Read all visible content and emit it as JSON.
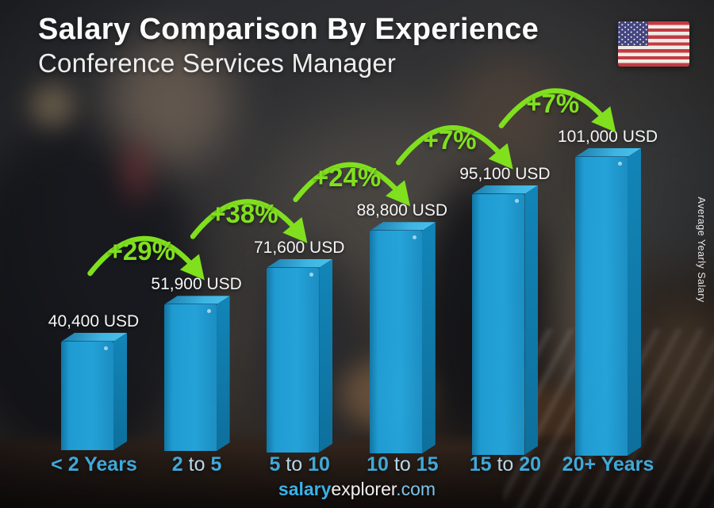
{
  "header": {
    "title": "Salary Comparison By Experience",
    "subtitle": "Conference Services Manager"
  },
  "flag": {
    "country": "United States"
  },
  "y_axis_label": "Average Yearly Salary",
  "footer": {
    "brand_bold": "salary",
    "brand_regular": "explorer",
    "brand_suffix": ".com"
  },
  "chart_data": {
    "type": "bar",
    "title": "Salary Comparison By Experience",
    "subtitle": "Conference Services Manager",
    "currency": "USD",
    "categories": [
      "< 2 Years",
      "2 to 5",
      "5 to 10",
      "10 to 15",
      "15 to 20",
      "20+ Years"
    ],
    "category_segments": [
      [
        "< 2 Years"
      ],
      [
        "2",
        "to",
        "5"
      ],
      [
        "5",
        "to",
        "10"
      ],
      [
        "10",
        "to",
        "15"
      ],
      [
        "15",
        "to",
        "20"
      ],
      [
        "20+ Years"
      ]
    ],
    "values": [
      40400,
      51900,
      71600,
      88800,
      95100,
      101000
    ],
    "value_labels": [
      "40,400 USD",
      "51,900 USD",
      "71,600 USD",
      "88,800 USD",
      "95,100 USD",
      "101,000 USD"
    ],
    "percent_increases": [
      "+29%",
      "+38%",
      "+24%",
      "+7%",
      "+7%"
    ],
    "ylim": [
      0,
      101000
    ],
    "legend": "none",
    "grid": false,
    "colors": {
      "bar_front": "#1fa0d9",
      "bar_front_dark": "#1179a9",
      "bar_top": "#3db4e2",
      "bar_top_dark": "#1b7aa8",
      "bar_side": "#1285b8",
      "bar_side_dark": "#0e6f9c",
      "percent_green": "#80e01e",
      "category_blue": "#3fa9da",
      "category_blue_light": "#b5d9ec",
      "value_text": "#f5f5f5",
      "title_text": "#fcfcfc",
      "brand_blue": "#38b2e8",
      "brand_light_blue": "#7cc6ea",
      "flag_red": "#c23b44",
      "flag_blue": "#44457e",
      "flag_white": "#f2ece4"
    }
  }
}
